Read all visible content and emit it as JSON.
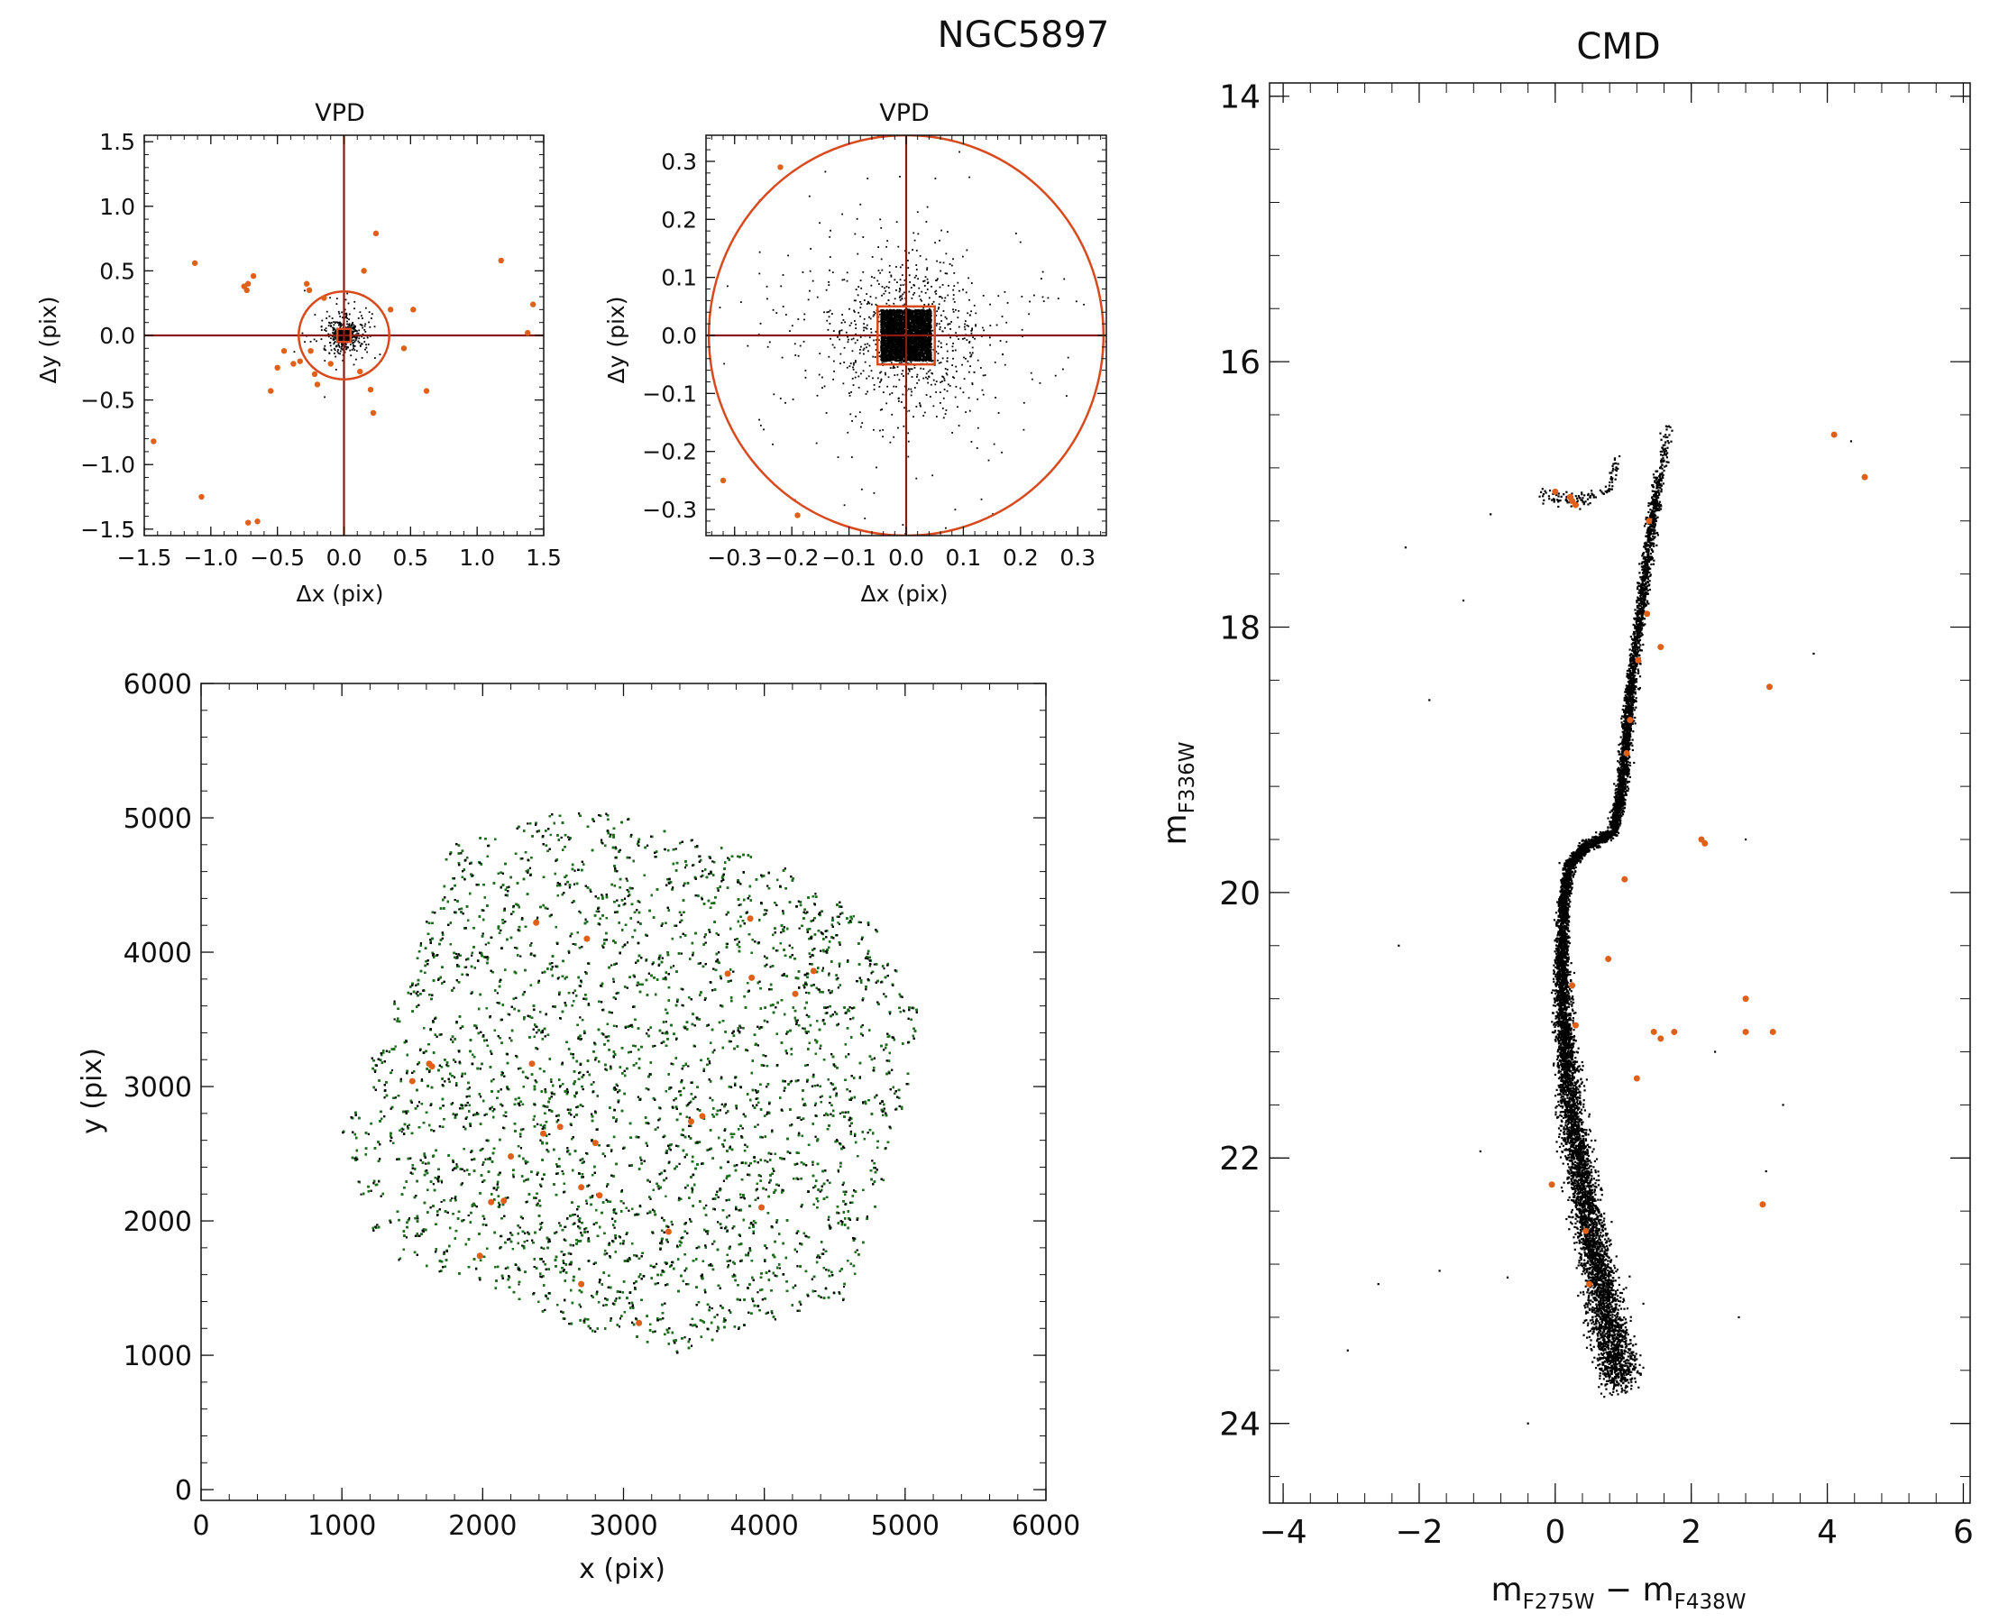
{
  "figure_title": "NGC5897",
  "colors": {
    "member": "#000000",
    "outlier": "#e0601a",
    "field": "#1f6e1f",
    "cut_line": "#8b1a10",
    "cut_circle": "#d84a1e"
  },
  "chart_data": [
    {
      "id": "vpd_wide",
      "type": "scatter",
      "title": "VPD",
      "xlabel": "Δx (pix)",
      "ylabel": "Δy (pix)",
      "xlim": [
        -1.5,
        1.5
      ],
      "ylim": [
        -1.55,
        1.55
      ],
      "xticks": [
        -1.5,
        -1.0,
        -0.5,
        0.0,
        0.5,
        1.0,
        1.5
      ],
      "yticks": [
        -1.5,
        -1.0,
        -0.5,
        0.0,
        0.5,
        1.0,
        1.5
      ],
      "xtick_labels": [
        "−1.5",
        "−1.0",
        "−0.5",
        "0.0",
        "0.5",
        "1.0",
        "1.5"
      ],
      "ytick_labels": [
        "−1.5",
        "−1.0",
        "−0.5",
        "0.0",
        "0.5",
        "1.0",
        "1.5"
      ],
      "crosshair": [
        0,
        0
      ],
      "selection_circle_radius": 0.34,
      "selection_box_halfwidth": 0.05,
      "members_core_sigma": 0.04,
      "outliers": [
        [
          -1.43,
          -0.82
        ],
        [
          -1.12,
          0.56
        ],
        [
          -1.07,
          -1.25
        ],
        [
          -0.75,
          0.38
        ],
        [
          -0.73,
          0.35
        ],
        [
          -0.72,
          0.4
        ],
        [
          -0.68,
          0.46
        ],
        [
          -0.72,
          -1.45
        ],
        [
          -0.65,
          -1.44
        ],
        [
          -0.55,
          -0.43
        ],
        [
          -0.5,
          -0.25
        ],
        [
          -0.45,
          -0.12
        ],
        [
          -0.38,
          -0.22
        ],
        [
          -0.33,
          -0.2
        ],
        [
          -0.28,
          0.4
        ],
        [
          -0.26,
          0.35
        ],
        [
          -0.22,
          -0.3
        ],
        [
          -0.25,
          -0.12
        ],
        [
          -0.15,
          0.29
        ],
        [
          -0.2,
          -0.38
        ],
        [
          0.15,
          0.5
        ],
        [
          0.24,
          0.79
        ],
        [
          0.2,
          -0.42
        ],
        [
          0.22,
          -0.6
        ],
        [
          0.35,
          0.2
        ],
        [
          0.45,
          -0.1
        ],
        [
          0.52,
          0.2
        ],
        [
          0.62,
          -0.43
        ],
        [
          1.18,
          0.58
        ],
        [
          1.38,
          0.02
        ],
        [
          1.42,
          0.24
        ],
        [
          0.12,
          -0.28
        ],
        [
          -0.1,
          -0.22
        ]
      ]
    },
    {
      "id": "vpd_zoom",
      "type": "scatter",
      "title": "VPD",
      "xlabel": "Δx (pix)",
      "ylabel": "Δy (pix)",
      "xlim": [
        -0.35,
        0.35
      ],
      "ylim": [
        -0.345,
        0.345
      ],
      "xticks": [
        -0.3,
        -0.2,
        -0.1,
        0.0,
        0.1,
        0.2,
        0.3
      ],
      "yticks": [
        -0.3,
        -0.2,
        -0.1,
        0.0,
        0.1,
        0.2,
        0.3
      ],
      "xtick_labels": [
        "−0.3",
        "−0.2",
        "−0.1",
        "0.0",
        "0.1",
        "0.2",
        "0.3"
      ],
      "ytick_labels": [
        "−0.3",
        "−0.2",
        "−0.1",
        "0.0",
        "0.1",
        "0.2",
        "0.3"
      ],
      "crosshair": [
        0,
        0
      ],
      "selection_circle_radius": 0.345,
      "selection_box_halfwidth": 0.05,
      "members_core_sigma": 0.04,
      "outliers": [
        [
          -0.22,
          0.29
        ],
        [
          -0.32,
          -0.25
        ],
        [
          -0.19,
          -0.31
        ]
      ]
    },
    {
      "id": "field_map",
      "type": "scatter",
      "xlabel": "x (pix)",
      "ylabel": "y (pix)",
      "xlim": [
        0,
        6000
      ],
      "ylim": [
        -80,
        6000
      ],
      "xticks": [
        0,
        1000,
        2000,
        3000,
        4000,
        5000,
        6000
      ],
      "yticks": [
        0,
        1000,
        2000,
        3000,
        4000,
        5000,
        6000
      ],
      "xtick_labels": [
        "0",
        "1000",
        "2000",
        "3000",
        "4000",
        "5000",
        "6000"
      ],
      "ytick_labels": [
        "0",
        "1000",
        "2000",
        "3000",
        "4000",
        "5000",
        "6000"
      ],
      "footprint": [
        [
          1000,
          2700
        ],
        [
          1040,
          2520
        ],
        [
          1280,
          1760
        ],
        [
          1900,
          1560
        ],
        [
          2500,
          1270
        ],
        [
          3340,
          1000
        ],
        [
          3420,
          1040
        ],
        [
          4620,
          1430
        ],
        [
          4820,
          2200
        ],
        [
          5140,
          3440
        ],
        [
          4860,
          4120
        ],
        [
          4680,
          4300
        ],
        [
          4020,
          4680
        ],
        [
          3320,
          4920
        ],
        [
          2750,
          5070
        ],
        [
          2550,
          5040
        ],
        [
          1720,
          4780
        ],
        [
          1750,
          4600
        ],
        [
          1450,
          3800
        ],
        [
          1200,
          3200
        ]
      ],
      "outliers": [
        [
          1620,
          3170
        ],
        [
          1640,
          3150
        ],
        [
          1500,
          3040
        ],
        [
          2380,
          4220
        ],
        [
          2740,
          4100
        ],
        [
          3900,
          4250
        ],
        [
          3740,
          3840
        ],
        [
          3910,
          3810
        ],
        [
          4350,
          3860
        ],
        [
          4220,
          3690
        ],
        [
          2350,
          3170
        ],
        [
          2430,
          2650
        ],
        [
          2550,
          2700
        ],
        [
          2800,
          2580
        ],
        [
          2200,
          2480
        ],
        [
          2700,
          2250
        ],
        [
          2830,
          2190
        ],
        [
          2150,
          2150
        ],
        [
          2060,
          2140
        ],
        [
          1980,
          1740
        ],
        [
          2700,
          1530
        ],
        [
          3320,
          1920
        ],
        [
          3480,
          2740
        ],
        [
          3560,
          2780
        ],
        [
          3110,
          1240
        ],
        [
          3980,
          2100
        ]
      ]
    },
    {
      "id": "cmd",
      "type": "scatter",
      "title": "CMD",
      "xlabel": "mF275W − mF438W",
      "ylabel": "mF336W",
      "xlim": [
        -4.2,
        6.1
      ],
      "ylim": [
        24.6,
        13.9
      ],
      "xticks": [
        -4,
        -2,
        0,
        2,
        4,
        6
      ],
      "yticks": [
        14,
        16,
        18,
        20,
        22,
        24
      ],
      "xtick_labels": [
        "−4",
        "−2",
        "0",
        "2",
        "4",
        "6"
      ],
      "ytick_labels": [
        "14",
        "16",
        "18",
        "20",
        "22",
        "24"
      ],
      "sequence_ridge": [
        [
          1.68,
          16.45
        ],
        [
          1.6,
          16.7
        ],
        [
          1.5,
          16.95
        ],
        [
          1.42,
          17.2
        ],
        [
          1.35,
          17.5
        ],
        [
          1.28,
          17.8
        ],
        [
          1.2,
          18.1
        ],
        [
          1.13,
          18.4
        ],
        [
          1.07,
          18.7
        ],
        [
          1.02,
          19.0
        ],
        [
          0.96,
          19.3
        ],
        [
          0.85,
          19.55
        ],
        [
          0.45,
          19.65
        ],
        [
          0.2,
          19.8
        ],
        [
          0.12,
          20.1
        ],
        [
          0.1,
          20.5
        ],
        [
          0.12,
          20.9
        ],
        [
          0.17,
          21.3
        ],
        [
          0.25,
          21.7
        ],
        [
          0.37,
          22.1
        ],
        [
          0.5,
          22.5
        ],
        [
          0.65,
          22.9
        ],
        [
          0.8,
          23.3
        ],
        [
          0.95,
          23.7
        ]
      ],
      "horizontal_branch": [
        [
          -0.2,
          16.98
        ],
        [
          0.05,
          17.02
        ],
        [
          0.3,
          17.05
        ],
        [
          0.55,
          17.02
        ],
        [
          0.8,
          16.95
        ],
        [
          0.9,
          16.75
        ]
      ],
      "outliers": [
        [
          4.1,
          16.55
        ],
        [
          4.55,
          16.87
        ],
        [
          0.25,
          17.05
        ],
        [
          0.22,
          17.02
        ],
        [
          0.3,
          17.08
        ],
        [
          0.0,
          16.98
        ],
        [
          1.38,
          17.2
        ],
        [
          1.35,
          17.9
        ],
        [
          1.55,
          18.15
        ],
        [
          1.22,
          18.25
        ],
        [
          3.15,
          18.45
        ],
        [
          1.1,
          18.7
        ],
        [
          1.05,
          18.95
        ],
        [
          2.15,
          19.6
        ],
        [
          2.2,
          19.63
        ],
        [
          1.02,
          19.9
        ],
        [
          0.78,
          20.5
        ],
        [
          0.25,
          20.7
        ],
        [
          2.8,
          20.8
        ],
        [
          0.3,
          21.0
        ],
        [
          1.45,
          21.05
        ],
        [
          1.55,
          21.1
        ],
        [
          1.75,
          21.05
        ],
        [
          2.8,
          21.05
        ],
        [
          3.2,
          21.05
        ],
        [
          1.2,
          21.4
        ],
        [
          -0.05,
          22.2
        ],
        [
          0.45,
          22.55
        ],
        [
          3.05,
          22.35
        ],
        [
          0.5,
          22.95
        ]
      ],
      "sparse_points": [
        [
          -2.2,
          17.4
        ],
        [
          -1.35,
          17.8
        ],
        [
          -0.95,
          17.15
        ],
        [
          -1.85,
          18.55
        ],
        [
          -2.3,
          20.4
        ],
        [
          -1.1,
          21.95
        ],
        [
          -0.7,
          22.9
        ],
        [
          -2.6,
          22.95
        ],
        [
          -1.7,
          22.85
        ],
        [
          -3.05,
          23.45
        ],
        [
          -0.4,
          24.0
        ],
        [
          4.35,
          16.6
        ],
        [
          3.8,
          18.2
        ],
        [
          2.8,
          19.6
        ],
        [
          2.35,
          21.2
        ],
        [
          3.35,
          21.6
        ],
        [
          3.1,
          22.1
        ],
        [
          2.7,
          23.2
        ]
      ]
    }
  ]
}
